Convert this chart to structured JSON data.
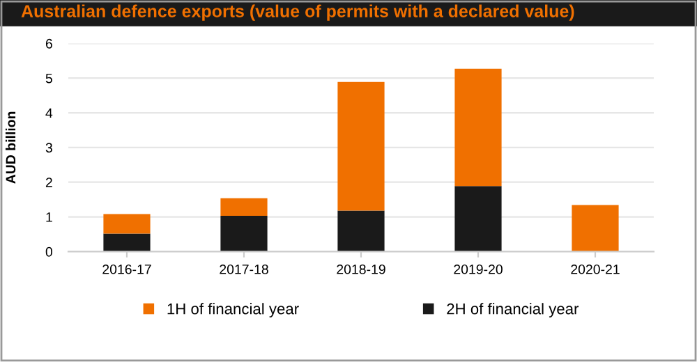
{
  "chart_data": {
    "type": "bar",
    "title": "Australian defence exports (value of permits with a declared value)",
    "ylabel": "AUD billion",
    "categories": [
      "2016-17",
      "2017-18",
      "2018-19",
      "2019-20",
      "2020-21"
    ],
    "stacked": true,
    "series": [
      {
        "name": "2H of financial year",
        "color": "#1a1a1a",
        "values": [
          0.52,
          1.03,
          1.18,
          1.89,
          0
        ]
      },
      {
        "name": "1H of financial year",
        "color": "#f07000",
        "values": [
          0.56,
          0.51,
          3.71,
          3.38,
          1.34
        ]
      }
    ],
    "ylim": [
      0,
      6
    ],
    "yticks": [
      0,
      1,
      2,
      3,
      4,
      5,
      6
    ],
    "grid": "y",
    "legend": "bottom"
  }
}
